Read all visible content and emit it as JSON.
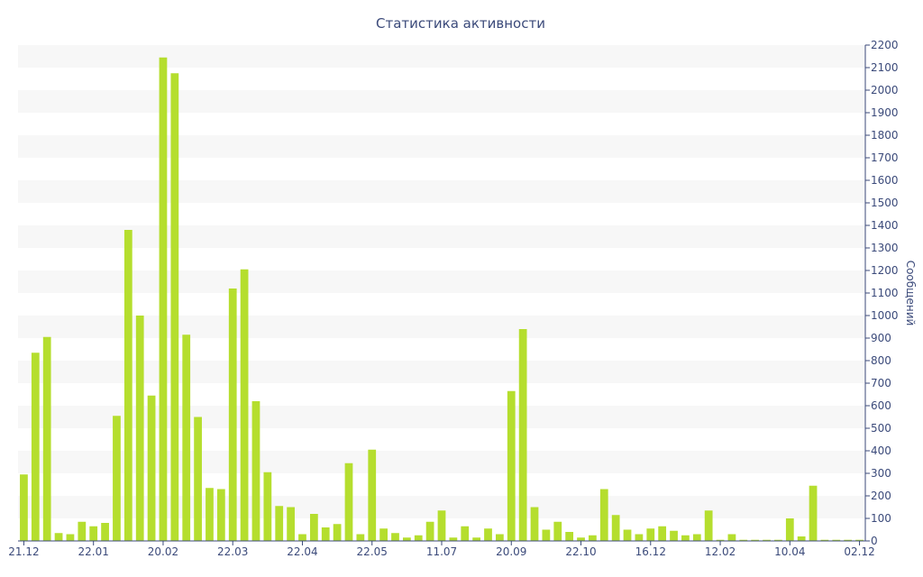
{
  "chart_data": {
    "type": "bar",
    "title": "Статистика активности",
    "xlabel": "",
    "ylabel": "Сообщений",
    "ylim": [
      0,
      2200
    ],
    "y_ticks": [
      0,
      100,
      200,
      300,
      400,
      500,
      600,
      700,
      800,
      900,
      1000,
      1100,
      1200,
      1300,
      1400,
      1500,
      1600,
      1700,
      1800,
      1900,
      2000,
      2100,
      2200
    ],
    "y_axis_side": "right",
    "grid": "horizontal alternating bands",
    "legend": "none",
    "x_tick_labels": [
      {
        "label": "21.12",
        "index": 0
      },
      {
        "label": "22.01",
        "index": 6
      },
      {
        "label": "20.02",
        "index": 12
      },
      {
        "label": "22.03",
        "index": 18
      },
      {
        "label": "22.04",
        "index": 24
      },
      {
        "label": "22.05",
        "index": 30
      },
      {
        "label": "11.07",
        "index": 36
      },
      {
        "label": "20.09",
        "index": 42
      },
      {
        "label": "22.10",
        "index": 48
      },
      {
        "label": "16.12",
        "index": 54
      },
      {
        "label": "12.02",
        "index": 60
      },
      {
        "label": "10.04",
        "index": 66
      },
      {
        "label": "02.12",
        "index": 72
      }
    ],
    "values": [
      295,
      835,
      905,
      35,
      30,
      85,
      65,
      80,
      555,
      1380,
      1000,
      645,
      2145,
      2075,
      915,
      550,
      235,
      230,
      1120,
      1205,
      620,
      305,
      155,
      150,
      30,
      120,
      60,
      75,
      345,
      30,
      405,
      55,
      35,
      15,
      25,
      85,
      135,
      15,
      65,
      15,
      55,
      30,
      665,
      940,
      150,
      50,
      85,
      40,
      15,
      25,
      230,
      115,
      50,
      30,
      55,
      65,
      45,
      25,
      30,
      135,
      5,
      30,
      5,
      5,
      5,
      5,
      100,
      20,
      245,
      5,
      5,
      5,
      5
    ],
    "colors": {
      "bar": "#b5de2e",
      "axis": "#3b4a7a",
      "band": "#f7f7f7"
    }
  }
}
